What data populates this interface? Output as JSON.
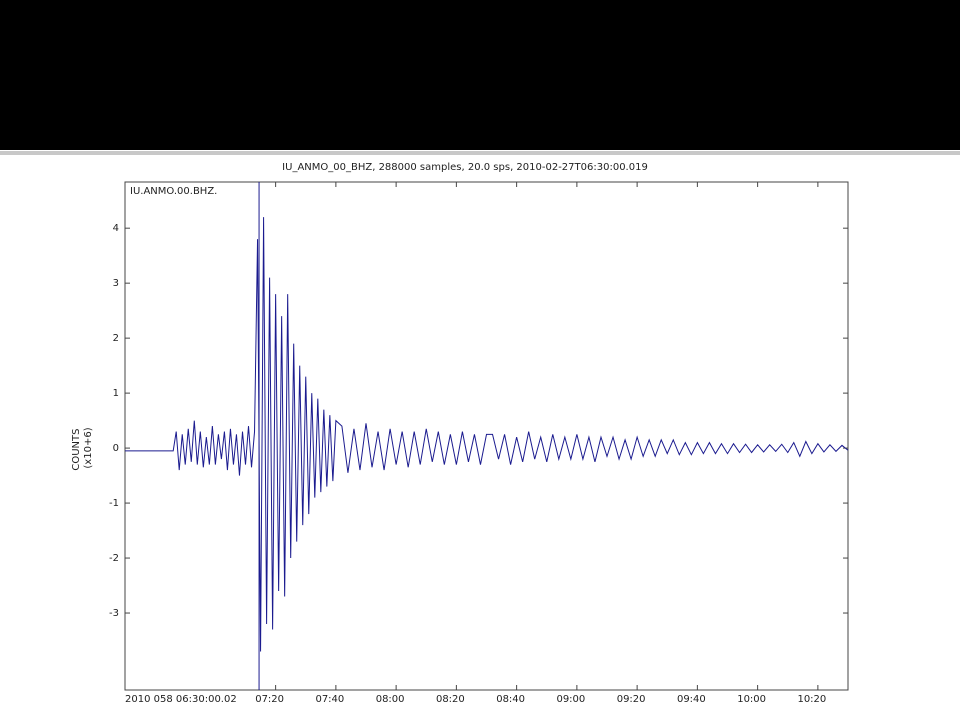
{
  "chart_data": {
    "type": "line",
    "title": "IU_ANMO_00_BHZ, 288000 samples, 20.0 sps, 2010-02-27T06:30:00.019",
    "annotation": "IU.ANMO.00.BHZ.",
    "ylabel_lines": [
      "COUNTS",
      "(x10+6)"
    ],
    "color": "#1b1b8f",
    "marker_x": 44.5,
    "xlim": [
      0,
      240
    ],
    "xticks": [
      {
        "value": 0,
        "label": "2010 058 06:30:00.02"
      },
      {
        "value": 50,
        "label": "07:20"
      },
      {
        "value": 70,
        "label": "07:40"
      },
      {
        "value": 90,
        "label": "08:00"
      },
      {
        "value": 110,
        "label": "08:20"
      },
      {
        "value": 130,
        "label": "08:40"
      },
      {
        "value": 150,
        "label": "09:00"
      },
      {
        "value": 170,
        "label": "09:20"
      },
      {
        "value": 190,
        "label": "09:40"
      },
      {
        "value": 210,
        "label": "10:00"
      },
      {
        "value": 230,
        "label": "10:20"
      }
    ],
    "ylim": [
      -4.4,
      4.84
    ],
    "yticks": [
      -3,
      -2,
      -1,
      0,
      1,
      2,
      3,
      4
    ],
    "x": [
      0,
      16,
      17,
      18,
      19,
      20,
      21,
      22,
      23,
      24,
      25,
      26,
      27,
      28,
      29,
      30,
      31,
      32,
      33,
      34,
      35,
      36,
      37,
      38,
      39,
      40,
      41,
      42,
      43,
      44,
      45,
      46,
      47,
      48,
      49,
      50,
      51,
      52,
      53,
      54,
      55,
      56,
      57,
      58,
      59,
      60,
      61,
      62,
      63,
      64,
      65,
      66,
      67,
      68,
      69,
      70,
      72,
      74,
      76,
      78,
      80,
      82,
      84,
      86,
      88,
      90,
      92,
      94,
      96,
      98,
      100,
      102,
      104,
      106,
      108,
      110,
      112,
      114,
      116,
      118,
      120,
      122,
      124,
      126,
      128,
      130,
      132,
      134,
      136,
      138,
      140,
      142,
      144,
      146,
      148,
      150,
      152,
      154,
      156,
      158,
      160,
      162,
      164,
      166,
      168,
      170,
      172,
      174,
      176,
      178,
      180,
      182,
      184,
      186,
      188,
      190,
      192,
      194,
      196,
      198,
      200,
      202,
      204,
      206,
      208,
      210,
      212,
      214,
      216,
      218,
      220,
      222,
      224,
      226,
      228,
      230,
      232,
      234,
      236,
      238,
      240
    ],
    "values": [
      -0.05,
      -0.05,
      0.3,
      -0.4,
      0.25,
      -0.3,
      0.35,
      -0.25,
      0.5,
      -0.3,
      0.3,
      -0.35,
      0.2,
      -0.3,
      0.4,
      -0.3,
      0.25,
      -0.2,
      0.3,
      -0.4,
      0.35,
      -0.3,
      0.25,
      -0.5,
      0.3,
      -0.3,
      0.4,
      -0.35,
      0.3,
      3.8,
      -3.7,
      4.2,
      -3.2,
      3.1,
      -3.3,
      2.8,
      -2.6,
      2.4,
      -2.7,
      2.8,
      -2.0,
      1.9,
      -1.7,
      1.5,
      -1.4,
      1.3,
      -1.2,
      1.0,
      -0.9,
      0.9,
      -0.8,
      0.7,
      -0.7,
      0.6,
      -0.6,
      0.5,
      0.4,
      -0.45,
      0.35,
      -0.4,
      0.45,
      -0.35,
      0.3,
      -0.4,
      0.35,
      -0.3,
      0.3,
      -0.35,
      0.3,
      -0.3,
      0.35,
      -0.25,
      0.3,
      -0.3,
      0.25,
      -0.3,
      0.3,
      -0.25,
      0.25,
      -0.3,
      0.25,
      0.25,
      -0.2,
      0.25,
      -0.3,
      0.2,
      -0.25,
      0.3,
      -0.2,
      0.2,
      -0.25,
      0.25,
      -0.2,
      0.2,
      -0.2,
      0.25,
      -0.2,
      0.2,
      -0.25,
      0.2,
      -0.15,
      0.2,
      -0.2,
      0.15,
      -0.2,
      0.2,
      -0.15,
      0.15,
      -0.15,
      0.15,
      -0.1,
      0.15,
      -0.12,
      0.1,
      -0.12,
      0.1,
      -0.1,
      0.1,
      -0.1,
      0.08,
      -0.1,
      0.08,
      -0.08,
      0.07,
      -0.08,
      0.06,
      -0.07,
      0.06,
      -0.06,
      0.07,
      -0.08,
      0.1,
      -0.15,
      0.12,
      -0.1,
      0.08,
      -0.07,
      0.06,
      -0.06,
      0.05,
      -0.04
    ]
  }
}
